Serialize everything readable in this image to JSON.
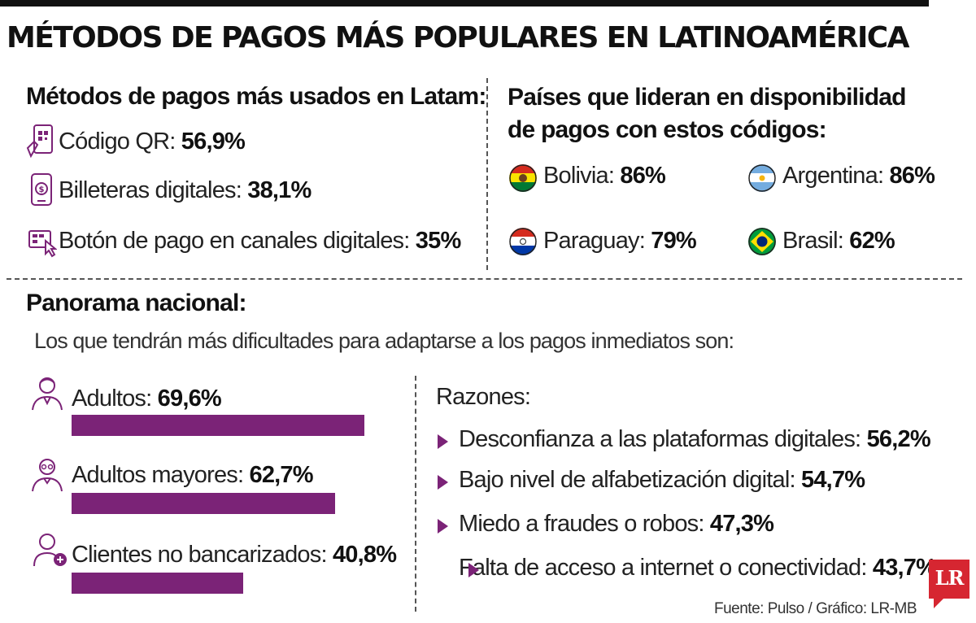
{
  "colors": {
    "accent": "#7b2377",
    "text": "#1a1a1a",
    "logo": "#d62631"
  },
  "title": "MÉTODOS DE PAGOS MÁS POPULARES EN LATINOAMÉRICA",
  "metodos": {
    "heading": "Métodos de pagos más usados en Latam:",
    "items": [
      {
        "icon": "qr-phone-icon",
        "label": "Código QR:",
        "value": "56,9%"
      },
      {
        "icon": "digital-wallet-icon",
        "label": "Billeteras digitales:",
        "value": "38,1%"
      },
      {
        "icon": "payment-button-icon",
        "label": "Botón de pago en canales digitales:",
        "value": "35%"
      }
    ]
  },
  "paises": {
    "heading_line1": "Países que lideran en disponibilidad",
    "heading_line2": "de pagos con estos códigos:",
    "items": [
      {
        "icon": "bolivia-flag-icon",
        "label": "Bolivia:",
        "value": "86%"
      },
      {
        "icon": "argentina-flag-icon",
        "label": "Argentina:",
        "value": "86%"
      },
      {
        "icon": "paraguay-flag-icon",
        "label": "Paraguay:",
        "value": "79%"
      },
      {
        "icon": "brasil-flag-icon",
        "label": "Brasil:",
        "value": "62%"
      }
    ]
  },
  "panorama": {
    "heading": "Panorama nacional:",
    "subtitle": "Los que tendrán más dificultades para adaptarse a los pagos inmediatos son:"
  },
  "chart_data": {
    "type": "bar",
    "orientation": "horizontal",
    "categories": [
      "Adultos:",
      "Adultos mayores:",
      "Clientes no bancarizados:"
    ],
    "values": [
      69.6,
      62.7,
      40.8
    ],
    "value_labels": [
      "69,6%",
      "62,7%",
      "40,8%"
    ],
    "icons": [
      "adult-person-icon",
      "senior-person-icon",
      "add-user-icon"
    ],
    "xlim": [
      0,
      100
    ],
    "title": "Los que tendrán más dificultades para adaptarse a los pagos inmediatos son:",
    "xlabel": "",
    "ylabel": "",
    "grid": false
  },
  "razones": {
    "heading": "Razones:",
    "items": [
      {
        "label": "Desconfianza a las plataformas digitales:",
        "value": "56,2%"
      },
      {
        "label": "Bajo nivel de alfabetización digital:",
        "value": "54,7%"
      },
      {
        "label": "Miedo a fraudes o robos:",
        "value": "47,3%"
      },
      {
        "label": "Falta de acceso a internet o conectividad:",
        "value": "43,7%"
      }
    ]
  },
  "source": "Fuente: Pulso / Gráfico: LR-MB",
  "logo": "LR"
}
